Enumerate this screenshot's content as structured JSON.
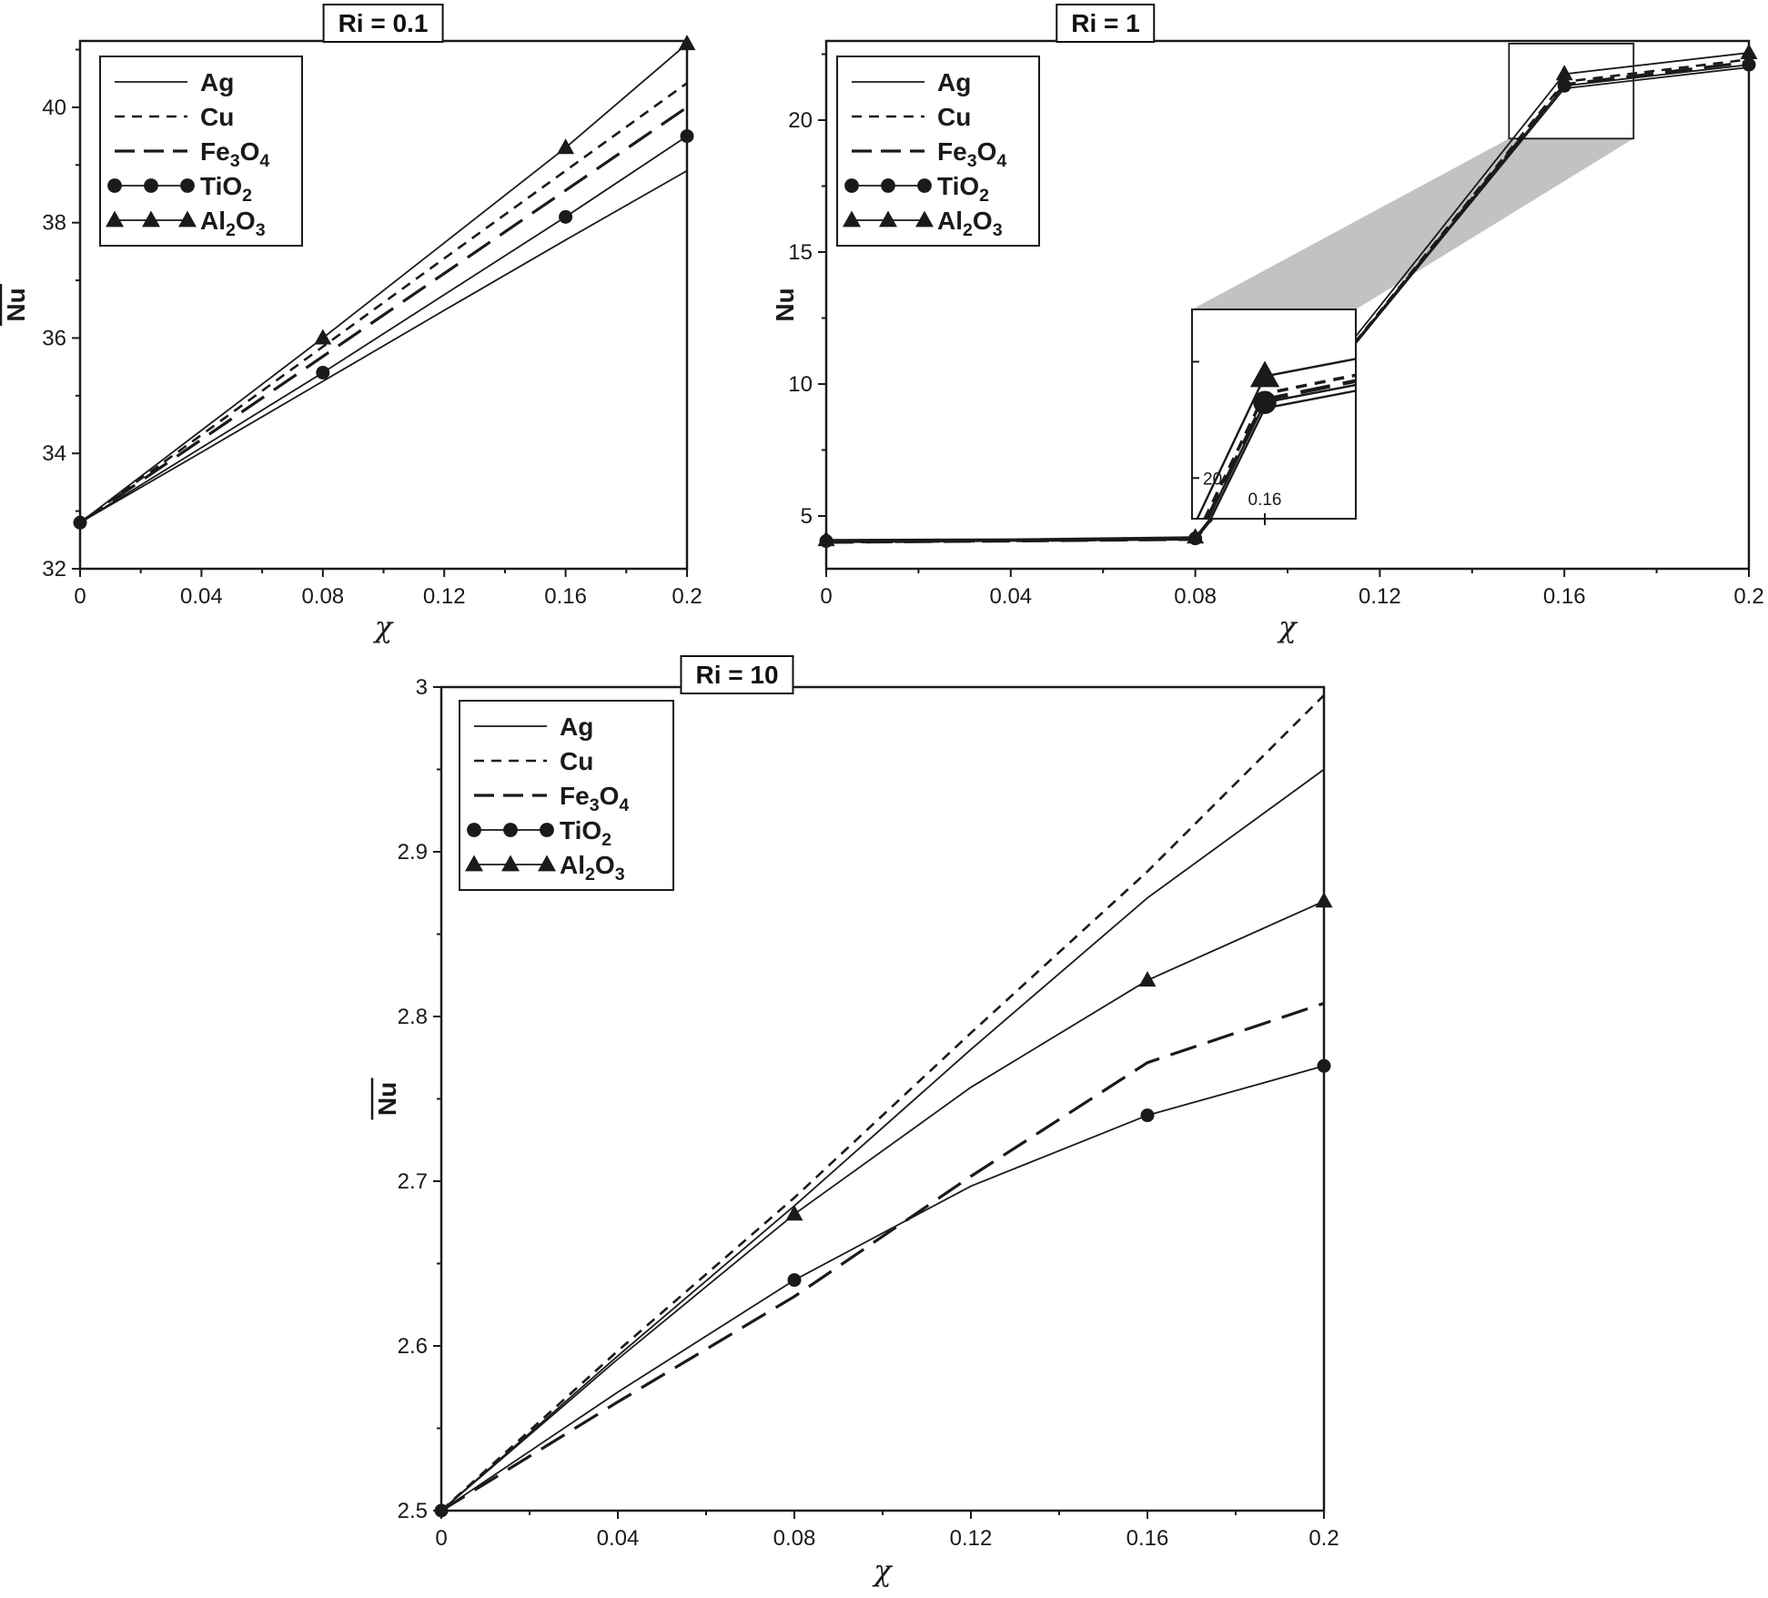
{
  "figure": {
    "background": "#ffffff",
    "line_color": "#1a1a1a",
    "shade_color": "#c2c2c2"
  },
  "chart_data": [
    {
      "id": "ri-0-1",
      "type": "line",
      "title": "Ri = 0.1",
      "xlabel": "χ",
      "ylabel": "Nu",
      "ylabel_overline": true,
      "grid": false,
      "legend_position": "top-left",
      "xlim": [
        0,
        0.2
      ],
      "ylim": [
        32,
        41.15
      ],
      "xticks": [
        {
          "v": 0,
          "label": "0"
        },
        {
          "v": 0.04,
          "label": "0.04"
        },
        {
          "v": 0.08,
          "label": "0.08"
        },
        {
          "v": 0.12,
          "label": "0.12"
        },
        {
          "v": 0.16,
          "label": "0.16"
        },
        {
          "v": 0.2,
          "label": "0.2"
        }
      ],
      "yticks": [
        {
          "v": 32,
          "label": "32"
        },
        {
          "v": 34,
          "label": "34"
        },
        {
          "v": 36,
          "label": "36"
        },
        {
          "v": 38,
          "label": "38"
        },
        {
          "v": 40,
          "label": "40"
        }
      ],
      "x": [
        0,
        0.04,
        0.08,
        0.12,
        0.16,
        0.2
      ],
      "series": [
        {
          "name": "Ag",
          "label_parts": [
            [
              "Ag",
              false
            ]
          ],
          "style": "solid",
          "width": 1.8,
          "marker": null,
          "marker_at": [],
          "values": [
            32.8,
            34.02,
            35.25,
            36.48,
            37.7,
            38.9
          ]
        },
        {
          "name": "Cu",
          "label_parts": [
            [
              "Cu",
              false
            ]
          ],
          "style": "dash",
          "width": 2.6,
          "marker": null,
          "marker_at": [],
          "values": [
            32.8,
            34.32,
            35.85,
            37.38,
            38.9,
            40.42
          ]
        },
        {
          "name": "Fe3O4",
          "label_parts": [
            [
              "Fe",
              false
            ],
            [
              "3",
              true
            ],
            [
              "O",
              false
            ],
            [
              "4",
              true
            ]
          ],
          "style": "longdash",
          "width": 3.2,
          "marker": null,
          "marker_at": [],
          "values": [
            32.8,
            34.24,
            35.68,
            37.12,
            38.56,
            40.0
          ]
        },
        {
          "name": "TiO2",
          "label_parts": [
            [
              "TiO",
              false
            ],
            [
              "2",
              true
            ]
          ],
          "style": "solid",
          "width": 1.8,
          "marker": "circle",
          "marker_at": [
            0,
            0.08,
            0.16,
            0.2
          ],
          "values": [
            32.8,
            34.1,
            35.4,
            36.75,
            38.1,
            39.5
          ]
        },
        {
          "name": "Al2O3",
          "label_parts": [
            [
              "Al",
              false
            ],
            [
              "2",
              true
            ],
            [
              "O",
              false
            ],
            [
              "3",
              true
            ]
          ],
          "style": "solid",
          "width": 1.8,
          "marker": "triangle",
          "marker_at": [
            0.08,
            0.16,
            0.2
          ],
          "values": [
            32.8,
            34.4,
            36.0,
            37.65,
            39.3,
            41.1
          ]
        }
      ]
    },
    {
      "id": "ri-1",
      "type": "line",
      "title": "Ri = 1",
      "xlabel": "χ",
      "ylabel": "Nu",
      "ylabel_overline": true,
      "grid": false,
      "legend_position": "top-left",
      "xlim": [
        0,
        0.2
      ],
      "ylim": [
        3,
        23
      ],
      "xticks": [
        {
          "v": 0,
          "label": "0"
        },
        {
          "v": 0.04,
          "label": "0.04"
        },
        {
          "v": 0.08,
          "label": "0.08"
        },
        {
          "v": 0.12,
          "label": "0.12"
        },
        {
          "v": 0.16,
          "label": "0.16"
        },
        {
          "v": 0.2,
          "label": "0.2"
        }
      ],
      "yticks": [
        {
          "v": 5,
          "label": "5"
        },
        {
          "v": 10,
          "label": "10"
        },
        {
          "v": 15,
          "label": "15"
        },
        {
          "v": 20,
          "label": "20"
        }
      ],
      "x": [
        0,
        0.04,
        0.08,
        0.12,
        0.16,
        0.2
      ],
      "series": [
        {
          "name": "Ag",
          "label_parts": [
            [
              "Ag",
              false
            ]
          ],
          "style": "solid",
          "width": 1.8,
          "marker": null,
          "marker_at": [],
          "values": [
            4.0,
            4.05,
            4.1,
            12.65,
            21.2,
            22.0
          ]
        },
        {
          "name": "Cu",
          "label_parts": [
            [
              "Cu",
              false
            ]
          ],
          "style": "dash",
          "width": 2.6,
          "marker": null,
          "marker_at": [],
          "values": [
            4.0,
            4.05,
            4.12,
            12.75,
            21.45,
            22.3
          ]
        },
        {
          "name": "Fe3O4",
          "label_parts": [
            [
              "Fe",
              false
            ],
            [
              "3",
              true
            ],
            [
              "O",
              false
            ],
            [
              "4",
              true
            ]
          ],
          "style": "longdash",
          "width": 3.2,
          "marker": null,
          "marker_at": [],
          "values": [
            4.0,
            4.05,
            4.11,
            12.7,
            21.35,
            22.2
          ]
        },
        {
          "name": "TiO2",
          "label_parts": [
            [
              "TiO",
              false
            ],
            [
              "2",
              true
            ]
          ],
          "style": "solid",
          "width": 1.8,
          "marker": "circle",
          "marker_at": [
            0,
            0.08,
            0.16,
            0.2
          ],
          "values": [
            4.05,
            4.08,
            4.15,
            12.72,
            21.3,
            22.1
          ]
        },
        {
          "name": "Al2O3",
          "label_parts": [
            [
              "Al",
              false
            ],
            [
              "2",
              true
            ],
            [
              "O",
              false
            ],
            [
              "3",
              true
            ]
          ],
          "style": "solid",
          "width": 1.8,
          "marker": "triangle",
          "marker_at": [
            0,
            0.08,
            0.16,
            0.2
          ],
          "values": [
            4.1,
            4.12,
            4.2,
            12.95,
            21.75,
            22.55
          ]
        }
      ],
      "inset": {
        "xlim": [
          0.148,
          0.175
        ],
        "ylim": [
          19.3,
          22.9
        ],
        "xticks": [
          {
            "v": 0.16,
            "label": "0.16"
          }
        ],
        "yticks": [
          {
            "v": 20,
            "label": "20"
          },
          {
            "v": 22,
            "label": ""
          }
        ],
        "marker_at": [
          0.16
        ]
      }
    },
    {
      "id": "ri-10",
      "type": "line",
      "title": "Ri = 10",
      "xlabel": "χ",
      "ylabel": "Nu",
      "ylabel_overline": true,
      "grid": false,
      "legend_position": "top-left",
      "xlim": [
        0,
        0.2
      ],
      "ylim": [
        2.5,
        3.0
      ],
      "xticks": [
        {
          "v": 0,
          "label": "0"
        },
        {
          "v": 0.04,
          "label": "0.04"
        },
        {
          "v": 0.08,
          "label": "0.08"
        },
        {
          "v": 0.12,
          "label": "0.12"
        },
        {
          "v": 0.16,
          "label": "0.16"
        },
        {
          "v": 0.2,
          "label": "0.2"
        }
      ],
      "yticks": [
        {
          "v": 2.5,
          "label": "2.5"
        },
        {
          "v": 2.6,
          "label": "2.6"
        },
        {
          "v": 2.7,
          "label": "2.7"
        },
        {
          "v": 2.8,
          "label": "2.8"
        },
        {
          "v": 2.9,
          "label": "2.9"
        },
        {
          "v": 3.0,
          "label": "3"
        }
      ],
      "x": [
        0,
        0.04,
        0.08,
        0.12,
        0.16,
        0.2
      ],
      "series": [
        {
          "name": "Ag",
          "label_parts": [
            [
              "Ag",
              false
            ]
          ],
          "style": "solid",
          "width": 1.8,
          "marker": null,
          "marker_at": [],
          "values": [
            2.5,
            2.594,
            2.685,
            2.78,
            2.872,
            2.95
          ]
        },
        {
          "name": "Cu",
          "label_parts": [
            [
              "Cu",
              false
            ]
          ],
          "style": "dash",
          "width": 2.6,
          "marker": null,
          "marker_at": [],
          "values": [
            2.5,
            2.597,
            2.69,
            2.79,
            2.888,
            2.995
          ]
        },
        {
          "name": "Fe3O4",
          "label_parts": [
            [
              "Fe",
              false
            ],
            [
              "3",
              true
            ],
            [
              "O",
              false
            ],
            [
              "4",
              true
            ]
          ],
          "style": "longdash",
          "width": 3.2,
          "marker": null,
          "marker_at": [],
          "values": [
            2.5,
            2.566,
            2.63,
            2.703,
            2.772,
            2.808
          ]
        },
        {
          "name": "TiO2",
          "label_parts": [
            [
              "TiO",
              false
            ],
            [
              "2",
              true
            ]
          ],
          "style": "solid",
          "width": 1.8,
          "marker": "circle",
          "marker_at": [
            0,
            0.08,
            0.16,
            0.2
          ],
          "values": [
            2.5,
            2.572,
            2.64,
            2.697,
            2.74,
            2.77
          ]
        },
        {
          "name": "Al2O3",
          "label_parts": [
            [
              "Al",
              false
            ],
            [
              "2",
              true
            ],
            [
              "O",
              false
            ],
            [
              "3",
              true
            ]
          ],
          "style": "solid",
          "width": 1.8,
          "marker": "triangle",
          "marker_at": [
            0.08,
            0.16,
            0.2
          ],
          "values": [
            2.5,
            2.592,
            2.68,
            2.757,
            2.822,
            2.87
          ]
        }
      ]
    }
  ]
}
